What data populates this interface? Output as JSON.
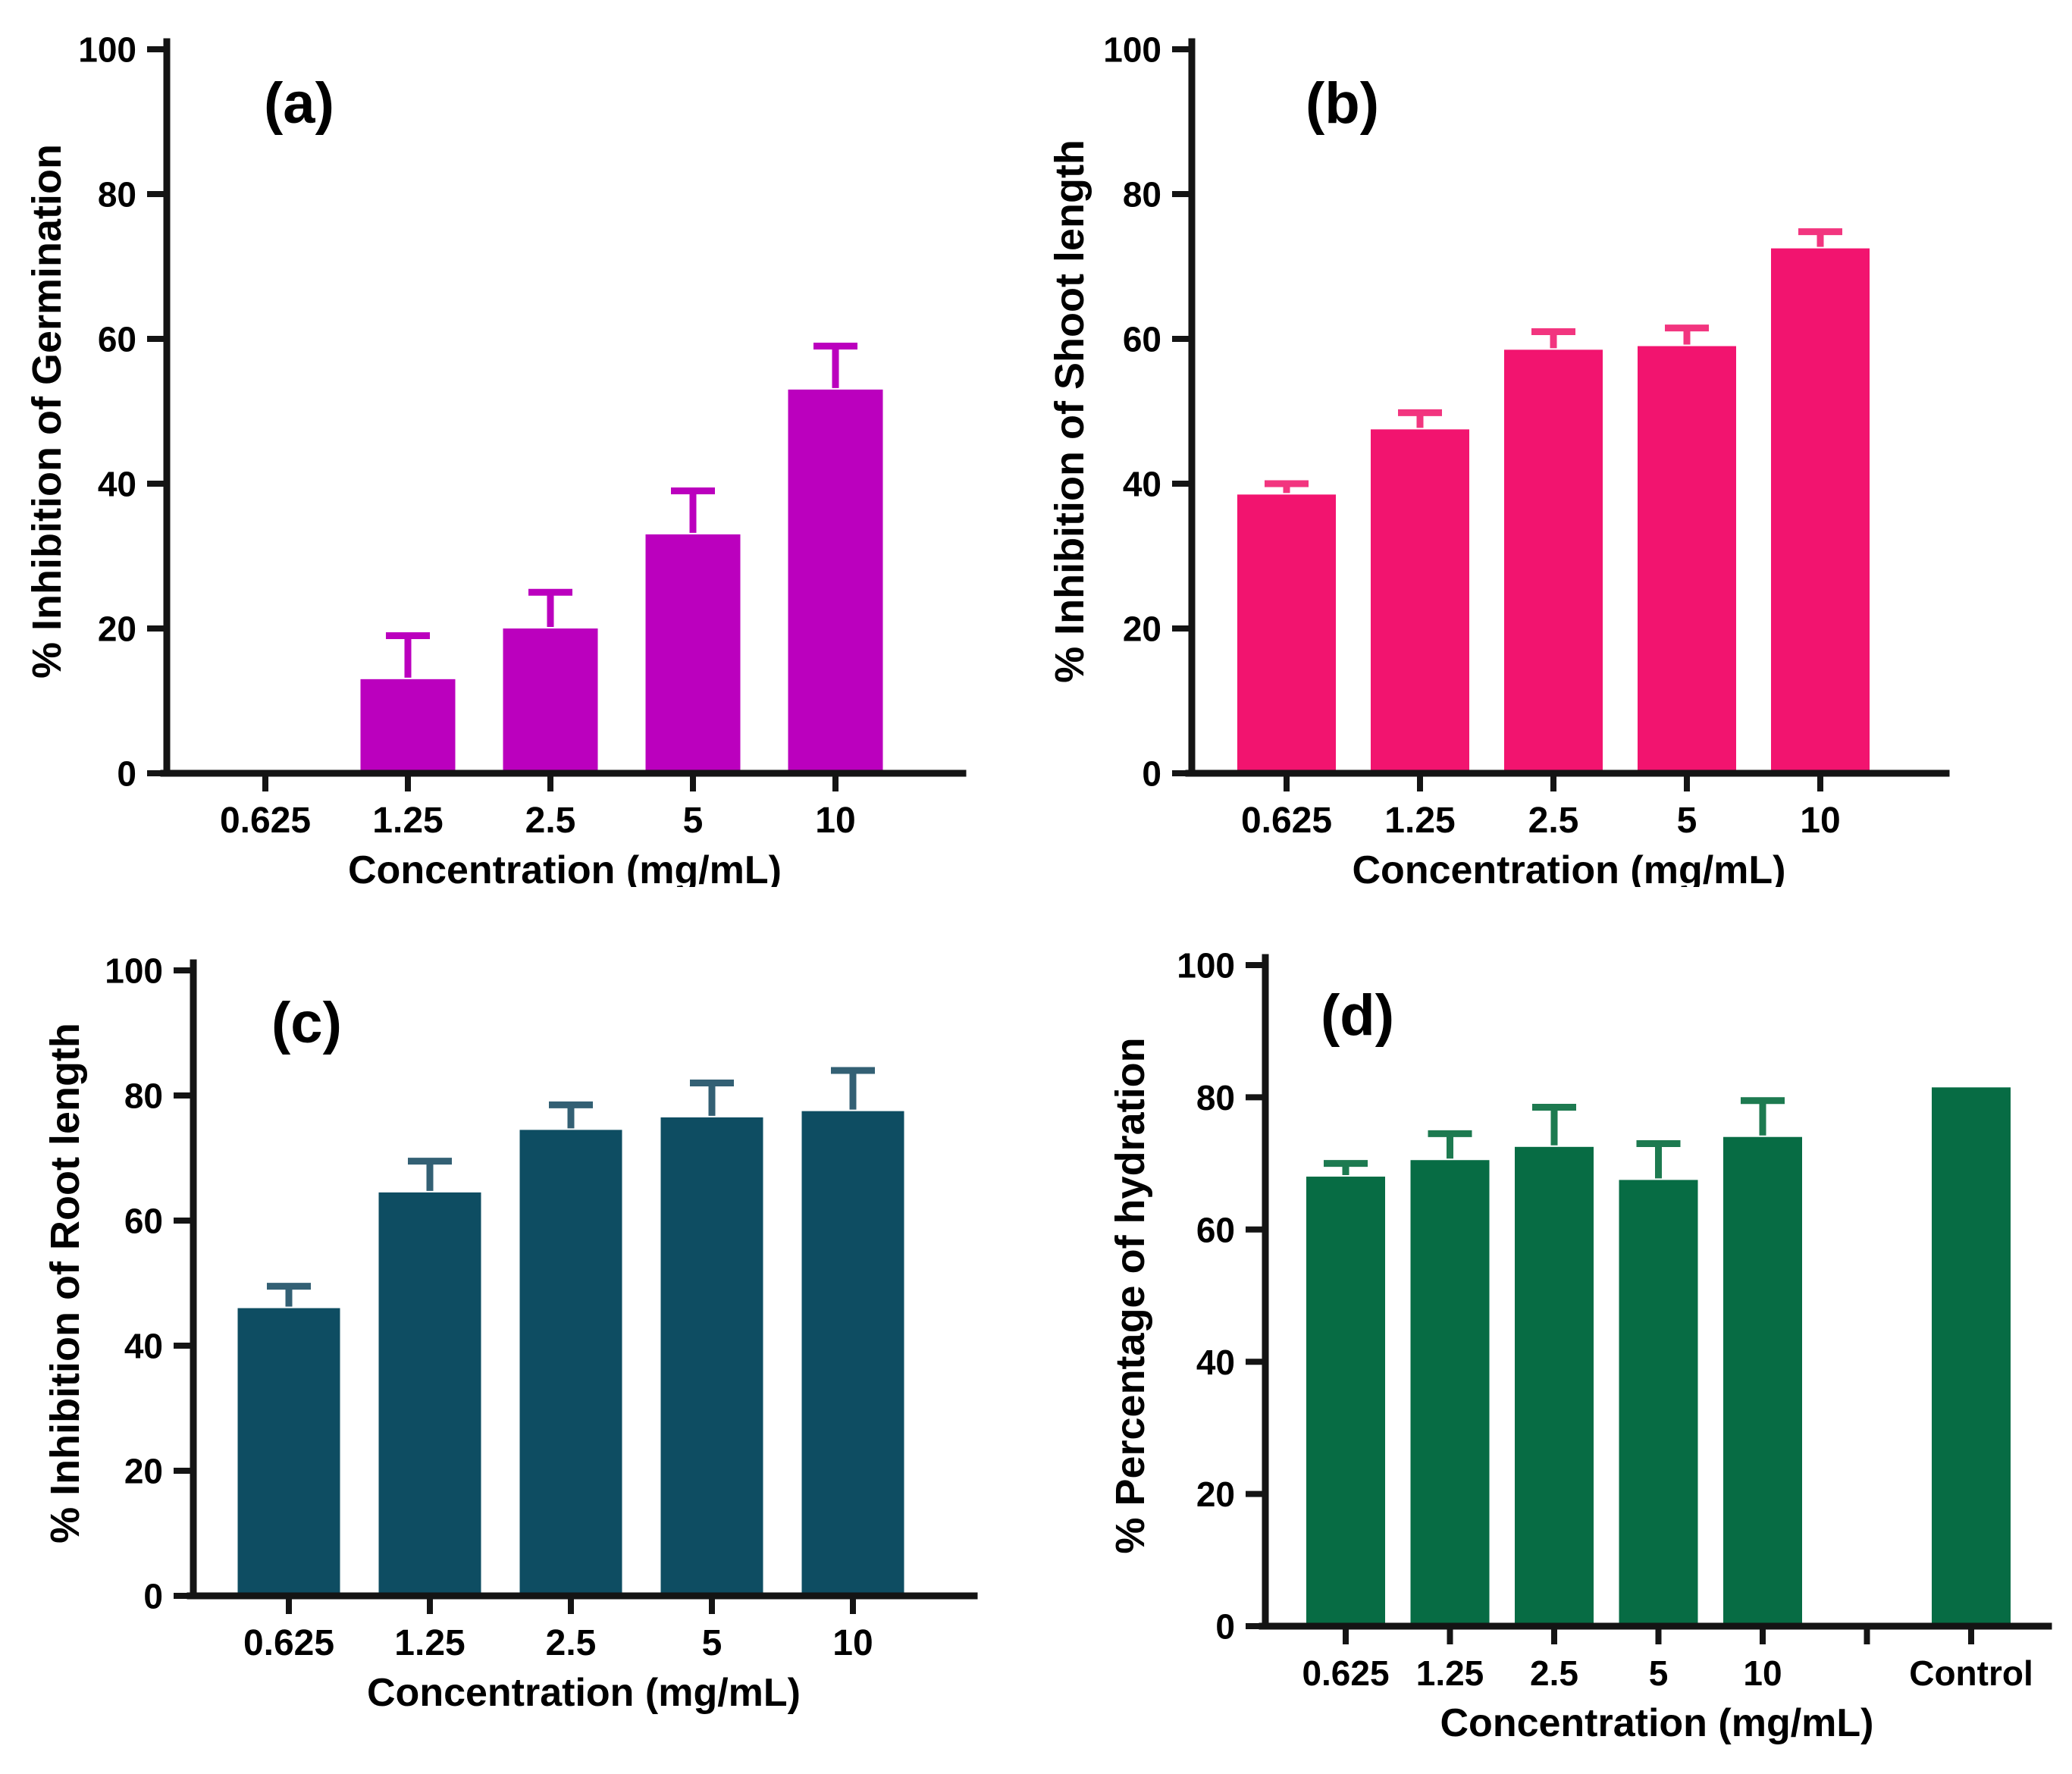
{
  "page": {
    "background": "#ffffff"
  },
  "chart_data": [
    {
      "panel_label": "(a)",
      "type": "bar",
      "title": "",
      "xlabel": "Concentration (mg/mL)",
      "ylabel": "% Inhibition of Germination",
      "categories": [
        "0.625",
        "1.25",
        "2.5",
        "5",
        "10"
      ],
      "values": [
        0,
        13,
        20,
        33,
        53
      ],
      "errors": [
        0,
        6,
        5,
        6,
        6
      ],
      "bar_color": "#bb00be",
      "error_color": "#bb00be",
      "axis_color": "#141414",
      "ylim": [
        0,
        100
      ],
      "yticks": [
        0,
        20,
        40,
        60,
        80,
        100
      ],
      "grid": "off",
      "legend": "none"
    },
    {
      "panel_label": "(b)",
      "type": "bar",
      "title": "",
      "xlabel": "Concentration (mg/mL)",
      "ylabel": "% Inhibition of Shoot length",
      "categories": [
        "0.625",
        "1.25",
        "2.5",
        "5",
        "10"
      ],
      "values": [
        38.5,
        47.5,
        58.5,
        59,
        72.5
      ],
      "errors": [
        1.5,
        2.3,
        2.5,
        2.5,
        2.3
      ],
      "bar_color": "#f2146f",
      "error_color": "#f2357f",
      "axis_color": "#141414",
      "ylim": [
        0,
        100
      ],
      "yticks": [
        0,
        20,
        40,
        60,
        80,
        100
      ],
      "grid": "off",
      "legend": "none"
    },
    {
      "panel_label": "(c)",
      "type": "bar",
      "title": "",
      "xlabel": "Concentration (mg/mL)",
      "ylabel": "% Inhibition of Root length",
      "categories": [
        "0.625",
        "1.25",
        "2.5",
        "5",
        "10"
      ],
      "values": [
        46,
        64.5,
        74.5,
        76.5,
        77.5
      ],
      "errors": [
        3.5,
        5,
        4,
        5.5,
        6.5
      ],
      "bar_color": "#0e4d62",
      "error_color": "#336074",
      "axis_color": "#141414",
      "ylim": [
        0,
        100
      ],
      "yticks": [
        0,
        20,
        40,
        60,
        80,
        100
      ],
      "grid": "off",
      "legend": "none"
    },
    {
      "panel_label": "(d)",
      "type": "bar",
      "title": "",
      "xlabel": "Concentration (mg/mL)",
      "ylabel": "% Percentage of hydration",
      "categories": [
        "0.625",
        "1.25",
        "2.5",
        "5",
        "10",
        "",
        "Control"
      ],
      "values": [
        68,
        70.5,
        72.5,
        67.5,
        74,
        null,
        81.5
      ],
      "errors": [
        2,
        4,
        6,
        5.5,
        5.5,
        null,
        0
      ],
      "bar_color": "#076c44",
      "error_color": "#1d7a50",
      "axis_color": "#141414",
      "ylim": [
        0,
        100
      ],
      "yticks": [
        0,
        20,
        40,
        60,
        80,
        100
      ],
      "grid": "off",
      "legend": "none"
    }
  ]
}
